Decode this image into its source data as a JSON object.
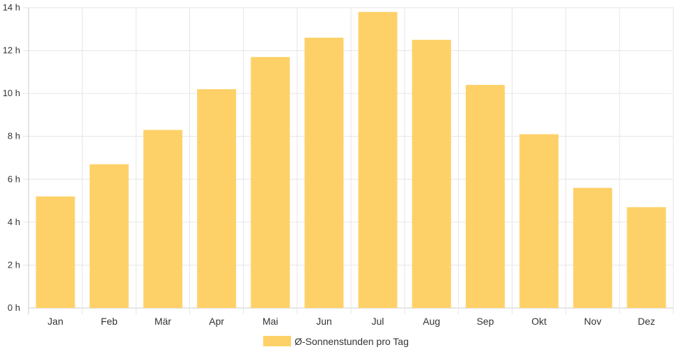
{
  "chart_data": {
    "type": "bar",
    "categories": [
      "Jan",
      "Feb",
      "Mär",
      "Apr",
      "Mai",
      "Jun",
      "Jul",
      "Aug",
      "Sep",
      "Okt",
      "Nov",
      "Dez"
    ],
    "series": [
      {
        "name": "Ø-Sonnenstunden pro Tag",
        "values": [
          5.2,
          6.7,
          8.3,
          10.2,
          11.7,
          12.6,
          13.8,
          12.5,
          10.4,
          8.1,
          5.6,
          4.7
        ],
        "color": "#fed168"
      }
    ],
    "y_ticks": [
      "0 h",
      "2 h",
      "4 h",
      "6 h",
      "8 h",
      "10 h",
      "12 h",
      "14 h"
    ],
    "ylim": [
      0,
      14
    ],
    "grid": true,
    "legend_position": "bottom",
    "colors": {
      "grid": "#e6e6e6",
      "axis": "#cccccc",
      "text": "#333333"
    }
  }
}
